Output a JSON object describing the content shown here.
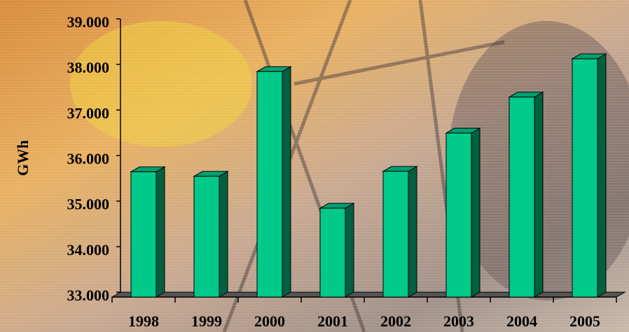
{
  "chart_data": {
    "type": "bar3d",
    "y_label": "GWh",
    "categories": [
      "1998",
      "1999",
      "2000",
      "2001",
      "2002",
      "2003",
      "2004",
      "2005"
    ],
    "values": [
      35750,
      35650,
      37950,
      34950,
      35760,
      36600,
      37390,
      38230
    ],
    "color": "#00c98a",
    "ylim": [
      33000,
      39000
    ],
    "yticks": [
      {
        "value": 33000,
        "label": "33.000"
      },
      {
        "value": 34000,
        "label": "34.000"
      },
      {
        "value": 35000,
        "label": "35.000"
      },
      {
        "value": 36000,
        "label": "36.000"
      },
      {
        "value": 37000,
        "label": "37.000"
      },
      {
        "value": 38000,
        "label": "38.000"
      },
      {
        "value": 39000,
        "label": "39.000"
      }
    ],
    "grid": false
  }
}
